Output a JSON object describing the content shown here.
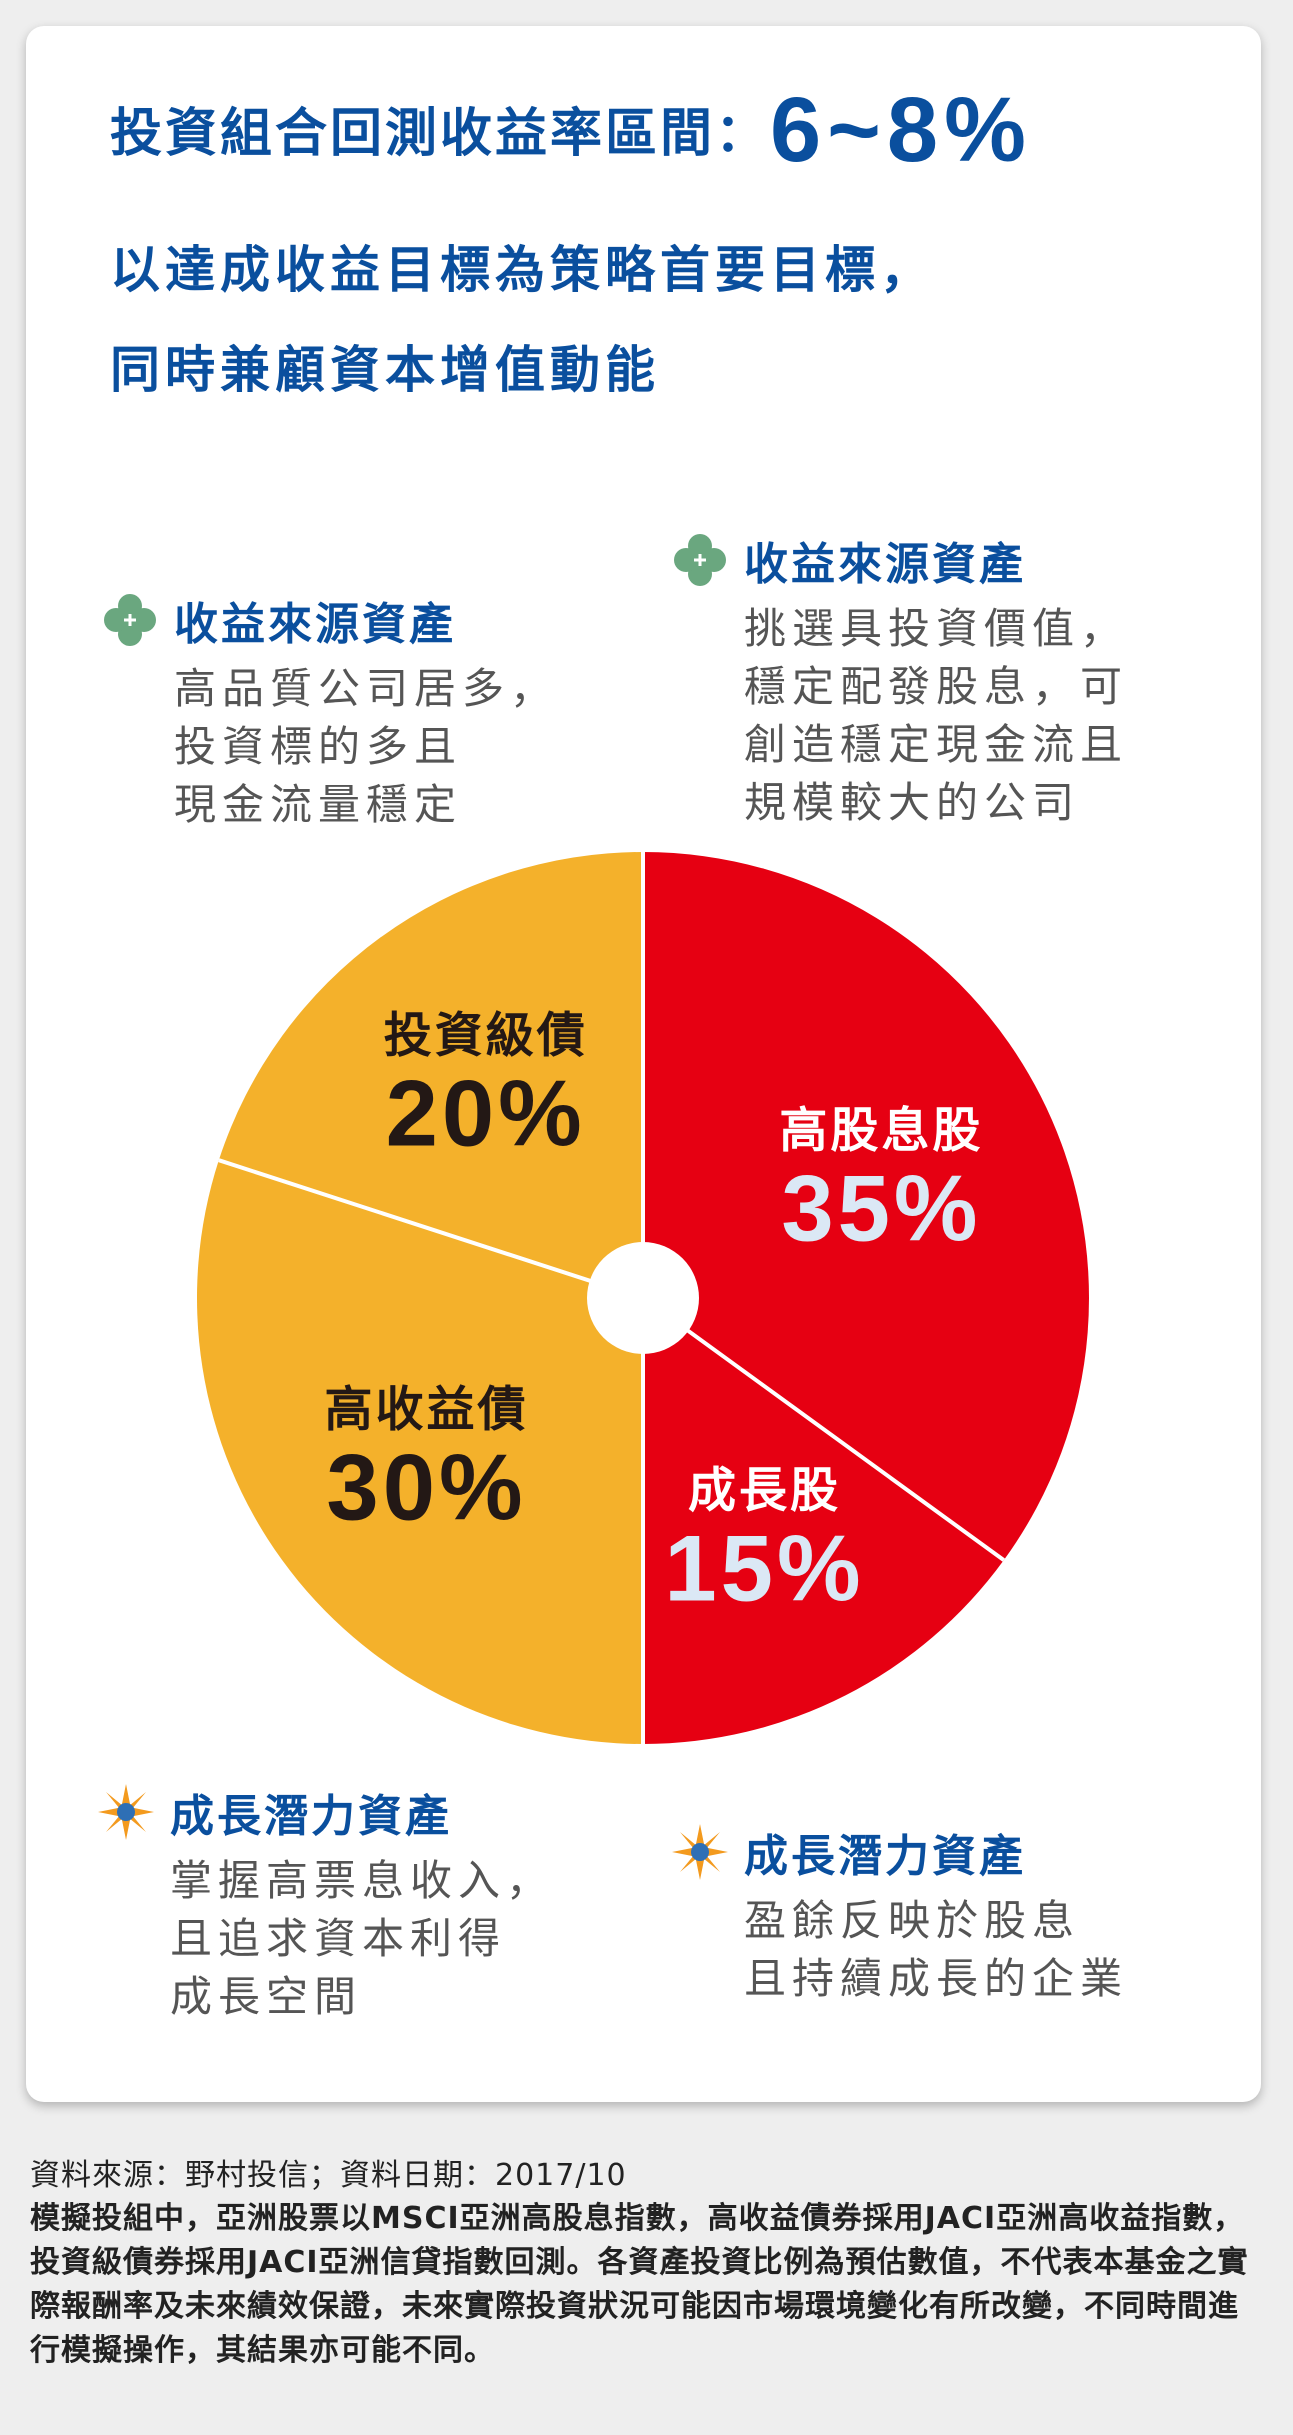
{
  "headline": {
    "text": "投資組合回測收益率區間：",
    "value": "6~8%"
  },
  "subhead": {
    "line1": "以達成收益目標為策略首要目標，",
    "line2": "同時兼顧資本增值動能"
  },
  "callouts": {
    "income_left": {
      "title": "收益來源資產",
      "lines": [
        "高品質公司居多，",
        "投資標的多且",
        "現金流量穩定"
      ],
      "icon": "green-flower-icon"
    },
    "income_right": {
      "title": "收益來源資產",
      "lines": [
        "挑選具投資價值，",
        "穩定配發股息，可",
        "創造穩定現金流且",
        "規模較大的公司"
      ],
      "icon": "green-flower-icon"
    },
    "growth_left": {
      "title": "成長潛力資產",
      "lines": [
        "掌握高票息收入，",
        "且追求資本利得",
        "成長空間"
      ],
      "icon": "orange-sunburst-icon"
    },
    "growth_right": {
      "title": "成長潛力資產",
      "lines": [
        "盈餘反映於股息",
        "且持續成長的企業"
      ],
      "icon": "orange-sunburst-icon"
    }
  },
  "chart_data": {
    "type": "pie",
    "slices": [
      {
        "label": "高股息股",
        "value": 35,
        "value_label": "35%",
        "color": "#e60012",
        "text_color": "#ffffff",
        "value_color": "#dbe8f5"
      },
      {
        "label": "成長股",
        "value": 15,
        "value_label": "15%",
        "color": "#e60012",
        "text_color": "#ffffff",
        "value_color": "#dbe8f5"
      },
      {
        "label": "高收益債",
        "value": 30,
        "value_label": "30%",
        "color": "#f4b12b",
        "text_color": "#231815",
        "value_color": "#231815"
      },
      {
        "label": "投資級債",
        "value": 20,
        "value_label": "20%",
        "color": "#f4b12b",
        "text_color": "#231815",
        "value_color": "#231815"
      }
    ],
    "start_angle_deg": 0,
    "direction": "clockwise",
    "center_hole": true
  },
  "colors": {
    "brand_blue": "#0a4f9e",
    "equity_red": "#e60012",
    "bond_yellow": "#f4b12b",
    "icon_green": "#6aa77f",
    "icon_orange": "#f39a1e"
  },
  "footer": {
    "source": "資料來源：野村投信；資料日期：2017/10",
    "note": "模擬投組中，亞洲股票以MSCI亞洲高股息指數，高收益債券採用JACI亞洲高收益指數，投資級債券採用JACI亞洲信貸指數回測。各資產投資比例為預估數值，不代表本基金之實際報酬率及未來績效保證，未來實際投資狀況可能因市場環境變化有所改變，不同時間進行模擬操作，其結果亦可能不同。"
  }
}
